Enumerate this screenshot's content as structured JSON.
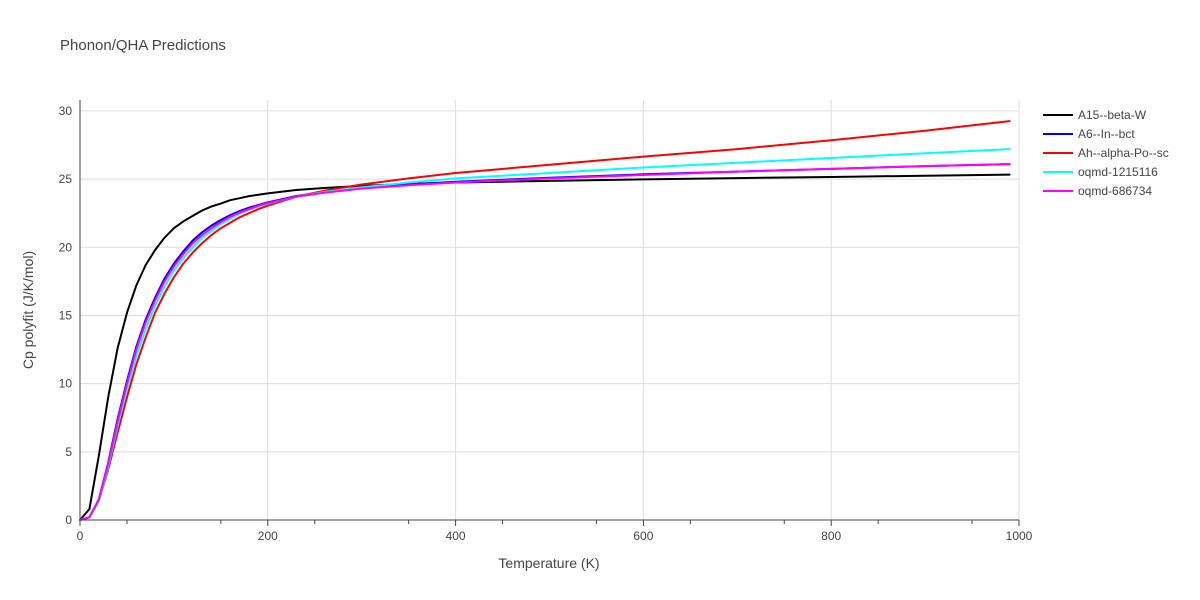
{
  "chart_data": {
    "type": "line",
    "title": "Phonon/QHA Predictions",
    "xlabel": "Temperature (K)",
    "ylabel": "Cp polyfit (J/K/mol)",
    "xlim": [
      0,
      1000
    ],
    "ylim": [
      0,
      30.8
    ],
    "xticks": [
      0,
      200,
      400,
      600,
      800,
      1000
    ],
    "yticks": [
      0,
      5,
      10,
      15,
      20,
      25,
      30
    ],
    "grid": true,
    "legend_position": "right",
    "series": [
      {
        "name": "A15--beta-W",
        "color": "#000000",
        "x": [
          0,
          10,
          20,
          30,
          40,
          50,
          60,
          70,
          80,
          90,
          100,
          110,
          120,
          130,
          140,
          150,
          160,
          170,
          180,
          190,
          200,
          230,
          260,
          300,
          350,
          400,
          500,
          600,
          700,
          800,
          900,
          990
        ],
        "y": [
          0,
          0.8,
          4.7,
          9.0,
          12.6,
          15.2,
          17.2,
          18.7,
          19.8,
          20.7,
          21.4,
          21.9,
          22.3,
          22.7,
          23.0,
          23.2,
          23.45,
          23.6,
          23.75,
          23.85,
          23.95,
          24.2,
          24.35,
          24.5,
          24.65,
          24.75,
          24.87,
          24.98,
          25.07,
          25.15,
          25.25,
          25.33
        ]
      },
      {
        "name": "A6--In--bct",
        "color": "#0000ff",
        "x": [
          0,
          10,
          20,
          30,
          40,
          50,
          60,
          70,
          80,
          90,
          100,
          110,
          120,
          130,
          140,
          150,
          160,
          170,
          180,
          190,
          200,
          230,
          260,
          300,
          350,
          400,
          500,
          600,
          700,
          800,
          900,
          990
        ],
        "y": [
          0,
          0.2,
          1.5,
          4.2,
          7.4,
          10.2,
          12.7,
          14.7,
          16.3,
          17.7,
          18.8,
          19.7,
          20.5,
          21.1,
          21.6,
          22.0,
          22.35,
          22.65,
          22.9,
          23.1,
          23.3,
          23.75,
          24.05,
          24.35,
          24.6,
          24.8,
          25.1,
          25.35,
          25.55,
          25.75,
          25.95,
          26.1
        ]
      },
      {
        "name": "Ah--alpha-Po--sc",
        "color": "#ff0000",
        "x": [
          0,
          10,
          20,
          30,
          40,
          50,
          60,
          70,
          80,
          90,
          100,
          110,
          120,
          130,
          140,
          150,
          160,
          170,
          180,
          190,
          200,
          230,
          260,
          300,
          350,
          400,
          500,
          600,
          700,
          800,
          900,
          990
        ],
        "y": [
          0,
          0.2,
          1.4,
          3.7,
          6.4,
          9.0,
          11.4,
          13.4,
          15.2,
          16.6,
          17.8,
          18.8,
          19.6,
          20.3,
          20.9,
          21.4,
          21.8,
          22.2,
          22.5,
          22.8,
          23.05,
          23.7,
          24.15,
          24.6,
          25.05,
          25.45,
          26.05,
          26.65,
          27.2,
          27.85,
          28.55,
          29.25
        ]
      },
      {
        "name": "oqmd-1215116",
        "color": "#00ffff",
        "x": [
          0,
          10,
          20,
          30,
          40,
          50,
          60,
          70,
          80,
          90,
          100,
          110,
          120,
          130,
          140,
          150,
          160,
          170,
          180,
          190,
          200,
          230,
          260,
          300,
          350,
          400,
          500,
          600,
          700,
          800,
          900,
          990
        ],
        "y": [
          0,
          0.2,
          1.4,
          3.9,
          6.9,
          9.6,
          12.0,
          14.0,
          15.7,
          17.1,
          18.3,
          19.2,
          20.0,
          20.7,
          21.2,
          21.7,
          22.1,
          22.45,
          22.75,
          23.0,
          23.2,
          23.7,
          24.05,
          24.4,
          24.75,
          25.05,
          25.45,
          25.85,
          26.2,
          26.55,
          26.9,
          27.2
        ]
      },
      {
        "name": "oqmd-686734",
        "color": "#ff00ff",
        "x": [
          0,
          10,
          20,
          30,
          40,
          50,
          60,
          70,
          80,
          90,
          100,
          110,
          120,
          130,
          140,
          150,
          160,
          170,
          180,
          190,
          200,
          230,
          260,
          300,
          350,
          400,
          500,
          600,
          700,
          800,
          900,
          990
        ],
        "y": [
          0,
          0.2,
          1.5,
          4.1,
          7.2,
          10.0,
          12.5,
          14.5,
          16.1,
          17.5,
          18.6,
          19.5,
          20.3,
          20.9,
          21.4,
          21.85,
          22.25,
          22.55,
          22.8,
          23.05,
          23.25,
          23.7,
          24.0,
          24.3,
          24.55,
          24.75,
          25.05,
          25.3,
          25.55,
          25.75,
          25.95,
          26.1
        ]
      }
    ]
  }
}
